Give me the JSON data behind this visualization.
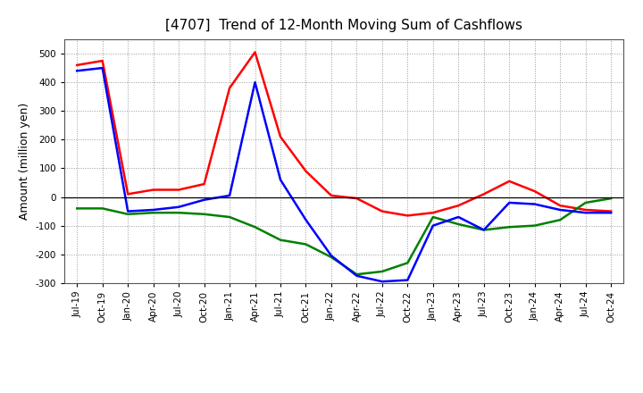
{
  "title": "[4707]  Trend of 12-Month Moving Sum of Cashflows",
  "ylabel": "Amount (million yen)",
  "ylim": [
    -300,
    550
  ],
  "yticks": [
    -300,
    -200,
    -100,
    0,
    100,
    200,
    300,
    400,
    500
  ],
  "x_labels": [
    "Jul-19",
    "Oct-19",
    "Jan-20",
    "Apr-20",
    "Jul-20",
    "Oct-20",
    "Jan-21",
    "Apr-21",
    "Jul-21",
    "Oct-21",
    "Jan-22",
    "Apr-22",
    "Jul-22",
    "Oct-22",
    "Jan-23",
    "Apr-23",
    "Jul-23",
    "Oct-23",
    "Jan-24",
    "Apr-24",
    "Jul-24",
    "Oct-24"
  ],
  "operating": [
    460,
    475,
    10,
    25,
    25,
    45,
    380,
    505,
    210,
    90,
    5,
    -5,
    -50,
    -65,
    -55,
    -30,
    10,
    55,
    20,
    -30,
    -45,
    -50
  ],
  "investing": [
    -40,
    -40,
    -60,
    -55,
    -55,
    -60,
    -70,
    -105,
    -150,
    -165,
    -210,
    -270,
    -260,
    -230,
    -70,
    -95,
    -115,
    -105,
    -100,
    -80,
    -20,
    -5
  ],
  "free": [
    440,
    450,
    -50,
    -45,
    -35,
    -10,
    5,
    400,
    60,
    -80,
    -205,
    -275,
    -295,
    -290,
    -100,
    -70,
    -115,
    -20,
    -25,
    -45,
    -55,
    -55
  ],
  "operating_color": "#ff0000",
  "investing_color": "#008000",
  "free_color": "#0000ff",
  "background_color": "#ffffff",
  "grid_color": "#999999",
  "title_fontsize": 11,
  "tick_fontsize": 7.5,
  "ylabel_fontsize": 9,
  "legend_fontsize": 9,
  "linewidth": 1.8
}
